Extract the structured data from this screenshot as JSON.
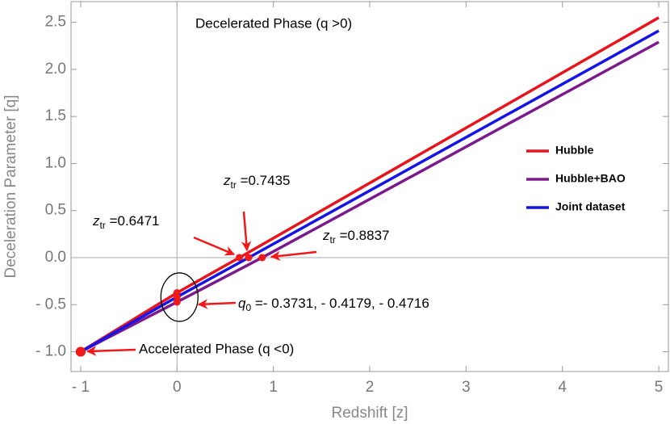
{
  "chart_data": {
    "type": "line",
    "xlabel": "Redshift [z]",
    "ylabel": "Deceleration Parameter [q]",
    "xlim": [
      -1.1,
      5.1
    ],
    "ylim": [
      -1.21,
      2.72
    ],
    "xticks": [
      {
        "value": -1,
        "label": "- 1"
      },
      0,
      1,
      2,
      3,
      4,
      5
    ],
    "yticks": [
      {
        "value": -1,
        "label": "- 1.0"
      },
      {
        "value": -0.5,
        "label": "- 0.5"
      },
      {
        "value": 0,
        "label": "0.0"
      },
      0.5,
      {
        "value": 1,
        "label": "1.0"
      },
      1.5,
      {
        "value": 2,
        "label": "2.0"
      },
      2.5
    ],
    "origin_axes": true,
    "legend": "right",
    "series": [
      {
        "name": "Hubble",
        "color": "#e8141c",
        "x": [
          -1,
          0,
          0.6471,
          5
        ],
        "values": [
          -1,
          -0.3731,
          0,
          2.55
        ]
      },
      {
        "name": "Hubble+BAO",
        "color": "#7b1a8c",
        "x": [
          -1,
          0,
          0.8837,
          5
        ],
        "values": [
          -1,
          -0.4716,
          0,
          2.29
        ]
      },
      {
        "name": "Joint dataset",
        "color": "#1414e6",
        "x": [
          -1,
          0,
          0.7435,
          5
        ],
        "values": [
          -1,
          -0.4179,
          0,
          2.41
        ]
      }
    ],
    "annotations": [
      {
        "text": "Decelerated Phase (q >0)"
      },
      {
        "symbol": "z",
        "sub": "tr",
        "text": " =0.7435"
      },
      {
        "symbol": "z",
        "sub": "tr",
        "text": " =0.6471"
      },
      {
        "symbol": "z",
        "sub": "tr",
        "text": " =0.8837"
      },
      {
        "symbol": "q",
        "sub": "0",
        "text": " =- 0.3731, - 0.4179, - 0.4716"
      },
      {
        "text": "Accelerated Phase (q <0)"
      }
    ]
  }
}
